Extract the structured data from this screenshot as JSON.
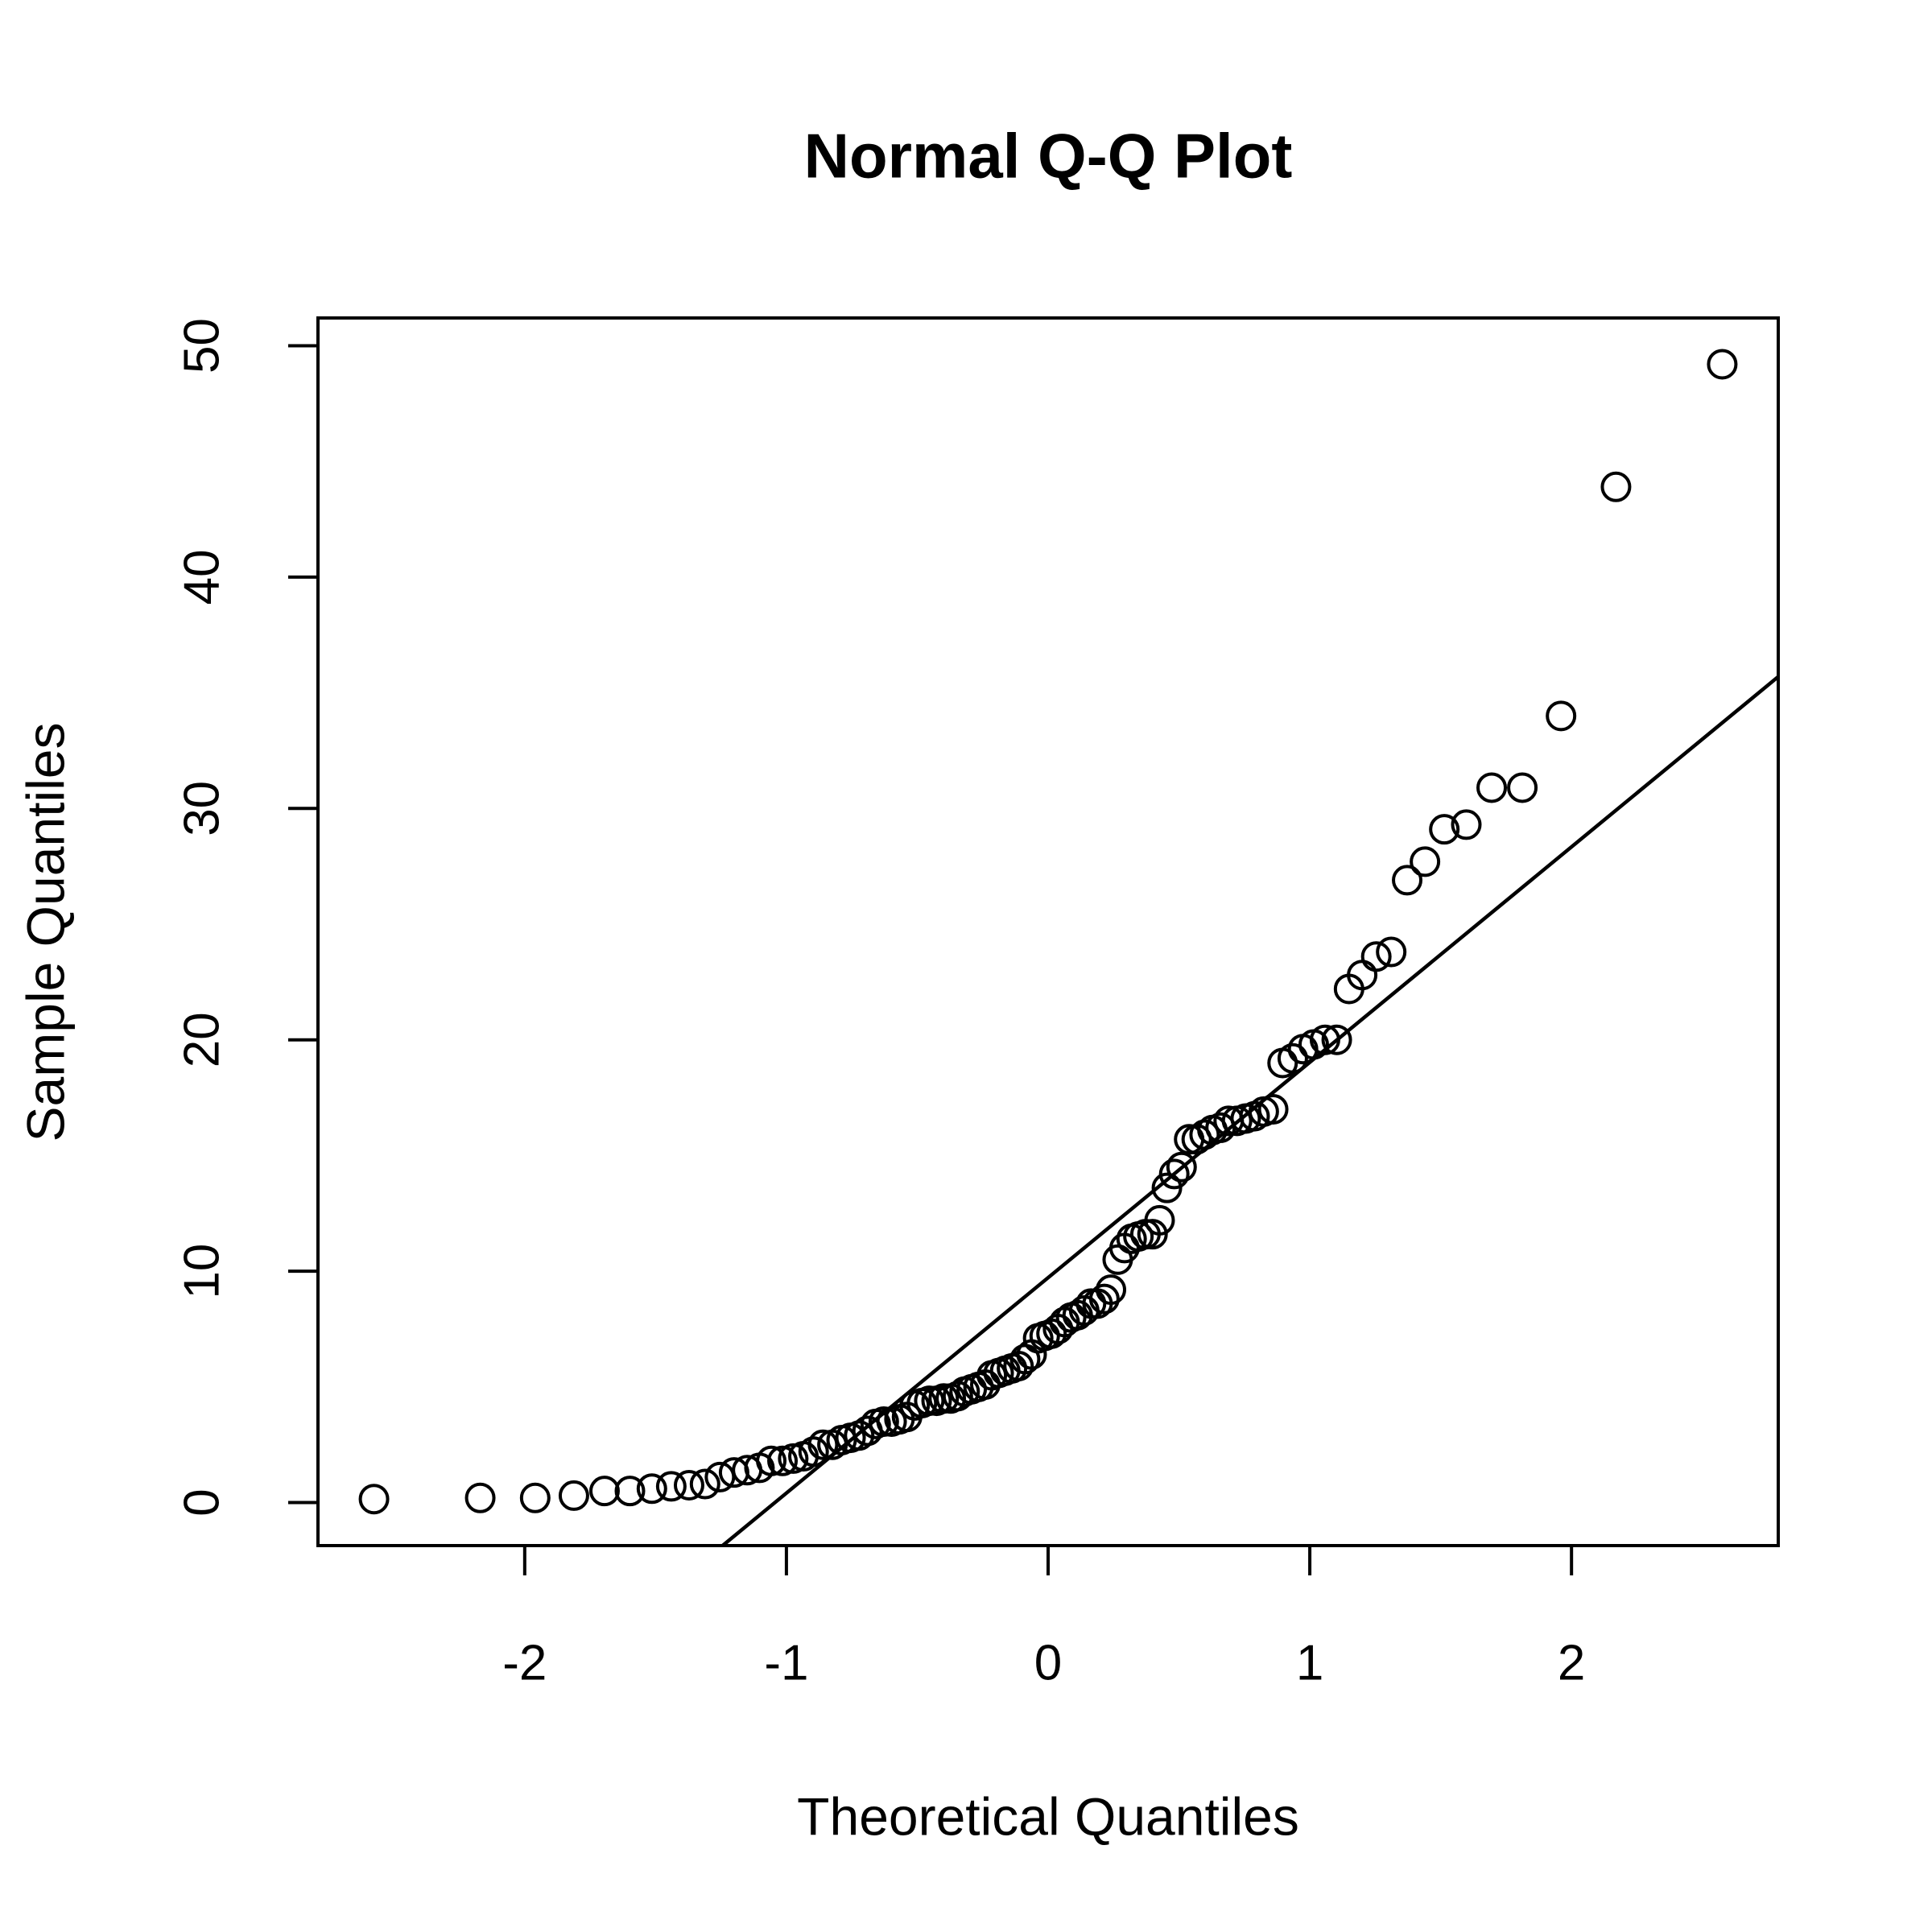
{
  "chart_data": {
    "type": "qq",
    "title": "Normal Q-Q Plot",
    "x_label": "Theoretical Quantiles",
    "y_label": "Sample Quantiles",
    "xlim": [
      -2.79,
      2.79
    ],
    "ylim": [
      -1.86,
      51.2
    ],
    "xticks": [
      -2,
      -1,
      0,
      1,
      2
    ],
    "yticks": [
      0,
      10,
      20,
      30,
      40,
      50
    ],
    "color": "#000000",
    "reference_line": {
      "intercept": 9.72,
      "slope": 9.31
    },
    "x": [
      -2.576,
      -2.17,
      -1.96,
      -1.812,
      -1.695,
      -1.598,
      -1.514,
      -1.44,
      -1.372,
      -1.311,
      -1.254,
      -1.2,
      -1.15,
      -1.103,
      -1.058,
      -1.015,
      -0.974,
      -0.935,
      -0.896,
      -0.86,
      -0.824,
      -0.789,
      -0.755,
      -0.722,
      -0.69,
      -0.659,
      -0.628,
      -0.598,
      -0.568,
      -0.539,
      -0.51,
      -0.482,
      -0.454,
      -0.426,
      -0.399,
      -0.372,
      -0.345,
      -0.319,
      -0.292,
      -0.266,
      -0.24,
      -0.215,
      -0.189,
      -0.164,
      -0.138,
      -0.113,
      -0.088,
      -0.063,
      -0.038,
      -0.013,
      0.013,
      0.038,
      0.063,
      0.088,
      0.113,
      0.138,
      0.164,
      0.189,
      0.215,
      0.24,
      0.266,
      0.292,
      0.319,
      0.345,
      0.372,
      0.399,
      0.426,
      0.454,
      0.482,
      0.51,
      0.539,
      0.568,
      0.598,
      0.628,
      0.659,
      0.69,
      0.722,
      0.755,
      0.789,
      0.824,
      0.86,
      0.896,
      0.935,
      0.974,
      1.015,
      1.058,
      1.103,
      1.15,
      1.2,
      1.254,
      1.311,
      1.372,
      1.44,
      1.514,
      1.598,
      1.695,
      1.812,
      1.96,
      2.17,
      2.576
    ],
    "values": [
      0.15,
      0.2,
      0.2,
      0.3,
      0.5,
      0.5,
      0.6,
      0.7,
      0.75,
      0.8,
      1.1,
      1.3,
      1.4,
      1.5,
      1.8,
      1.8,
      1.9,
      2.0,
      2.2,
      2.5,
      2.5,
      2.7,
      2.8,
      2.9,
      3.1,
      3.4,
      3.5,
      3.5,
      3.6,
      3.7,
      4.2,
      4.3,
      4.4,
      4.4,
      4.5,
      4.5,
      4.6,
      4.8,
      4.9,
      5.0,
      5.1,
      5.5,
      5.6,
      5.7,
      5.8,
      5.9,
      6.2,
      6.4,
      7.1,
      7.2,
      7.3,
      7.5,
      7.8,
      8.0,
      8.1,
      8.3,
      8.6,
      8.6,
      8.8,
      9.2,
      10.5,
      11.0,
      11.4,
      11.5,
      11.6,
      11.6,
      12.2,
      13.6,
      14.2,
      14.5,
      15.7,
      15.7,
      15.9,
      16.1,
      16.2,
      16.5,
      16.5,
      16.6,
      16.7,
      16.9,
      17.0,
      19.0,
      19.2,
      19.6,
      19.8,
      20.0,
      20.0,
      22.2,
      22.8,
      23.6,
      23.8,
      26.9,
      27.7,
      29.1,
      29.3,
      30.9,
      30.9,
      34.0,
      43.9,
      49.2
    ]
  }
}
